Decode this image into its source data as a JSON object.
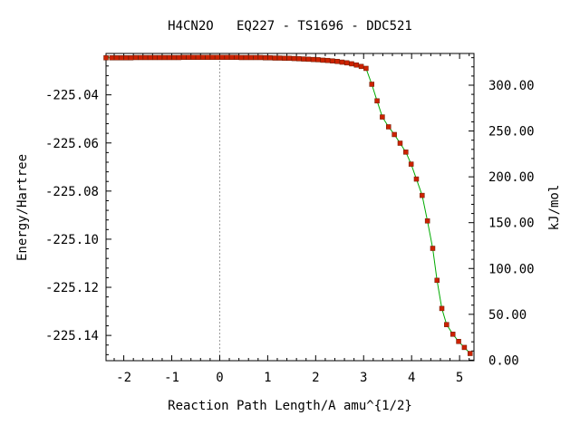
{
  "chart_data": {
    "type": "line",
    "title": "H4CN2O   EQ227 - TS1696 - DDC521",
    "xlabel": "Reaction Path Length/A amu^{1/2}",
    "ylabel": "Energy/Hartree",
    "y2label": "kJ/mol",
    "xlim": [
      -2.37,
      5.3
    ],
    "ylim": [
      -225.1505,
      -225.0228
    ],
    "y2lim": [
      -0.6,
      334.6
    ],
    "x_ticks": [
      "-2",
      "-1",
      "0",
      "1",
      "2",
      "3",
      "4",
      "5"
    ],
    "y_ticks": [
      "-225.04",
      "-225.06",
      "-225.08",
      "-225.10",
      "-225.12",
      "-225.14"
    ],
    "y2_ticks": [
      "0.00",
      "50.00",
      "100.00",
      "150.00",
      "200.00",
      "250.00",
      "300.00"
    ],
    "vline_x": 0,
    "grid": false,
    "colors": {
      "line": "#00aa00",
      "marker": "#cc2200",
      "vline": "#999999"
    },
    "series": [
      {
        "x": [
          -2.37,
          -2.25,
          -2.15,
          -2.05,
          -1.95,
          -1.85,
          -1.75,
          -1.65,
          -1.55,
          -1.45,
          -1.35,
          -1.25,
          -1.15,
          -1.05,
          -0.95,
          -0.85,
          -0.75,
          -0.65,
          -0.55,
          -0.45,
          -0.35,
          -0.25,
          -0.15,
          -0.05,
          0.05,
          0.15,
          0.25,
          0.35,
          0.45,
          0.55,
          0.65,
          0.75,
          0.85,
          0.95,
          1.05,
          1.15,
          1.25,
          1.35,
          1.45,
          1.55,
          1.65,
          1.75,
          1.85,
          1.95,
          2.05,
          2.15,
          2.25,
          2.35,
          2.45,
          2.55,
          2.65,
          2.75,
          2.85,
          2.95,
          3.05,
          3.17,
          3.28,
          3.39,
          3.52,
          3.64,
          3.76,
          3.88,
          3.99,
          4.1,
          4.22,
          4.33,
          4.44,
          4.53,
          4.63,
          4.73,
          4.86,
          4.98,
          5.1,
          5.22
        ],
        "y": [
          -225.0246,
          -225.0246,
          -225.0246,
          -225.0246,
          -225.0246,
          -225.0246,
          -225.0245,
          -225.0245,
          -225.0245,
          -225.0245,
          -225.0245,
          -225.0245,
          -225.0245,
          -225.0245,
          -225.0245,
          -225.0245,
          -225.0244,
          -225.0244,
          -225.0244,
          -225.0244,
          -225.0244,
          -225.0244,
          -225.0244,
          -225.0244,
          -225.0244,
          -225.0244,
          -225.0244,
          -225.0244,
          -225.0245,
          -225.0245,
          -225.0245,
          -225.0245,
          -225.0245,
          -225.0246,
          -225.0246,
          -225.0247,
          -225.0247,
          -225.0248,
          -225.0248,
          -225.0249,
          -225.025,
          -225.0251,
          -225.0252,
          -225.0253,
          -225.0254,
          -225.0256,
          -225.0257,
          -225.0259,
          -225.0261,
          -225.0264,
          -225.0267,
          -225.0271,
          -225.0276,
          -225.0282,
          -225.029,
          -225.0356,
          -225.0425,
          -225.0492,
          -225.0533,
          -225.0565,
          -225.0601,
          -225.0638,
          -225.0688,
          -225.075,
          -225.0818,
          -225.0924,
          -225.1038,
          -225.1171,
          -225.1288,
          -225.1355,
          -225.1395,
          -225.1425,
          -225.145,
          -225.1475
        ]
      }
    ]
  }
}
